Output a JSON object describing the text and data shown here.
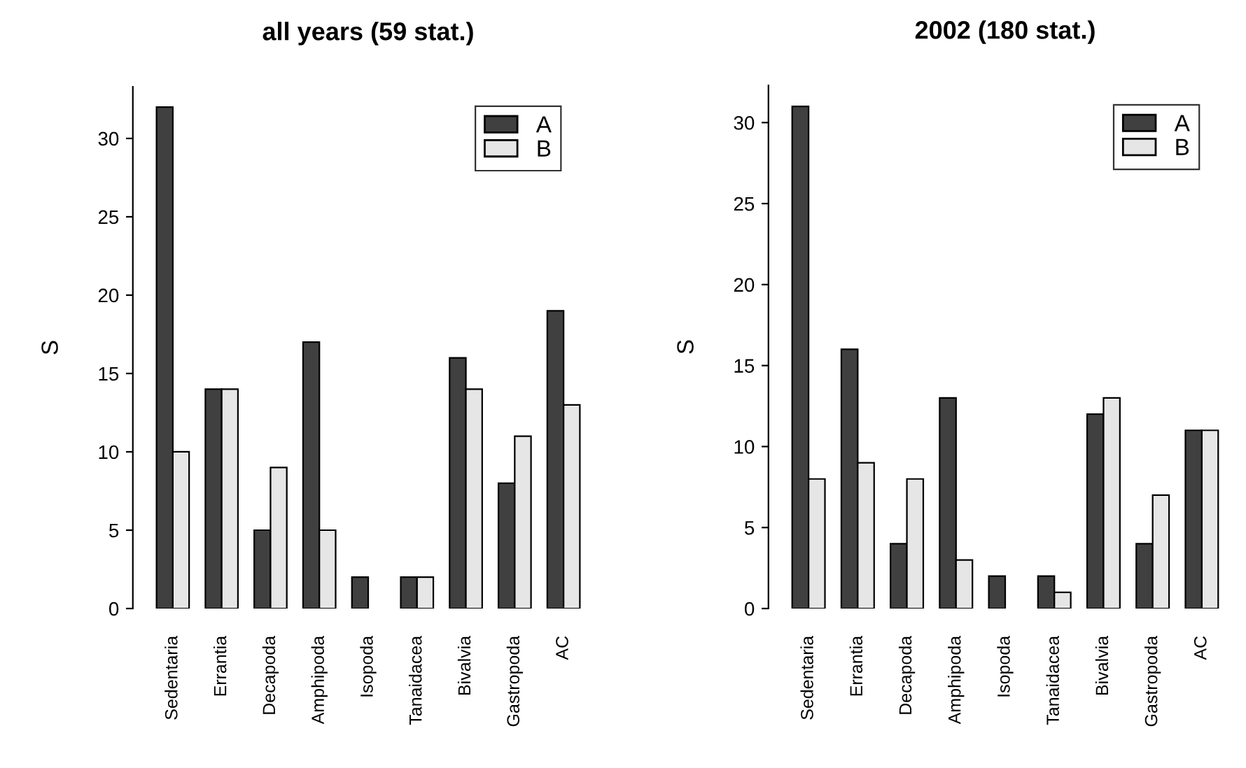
{
  "chart_data": [
    {
      "type": "bar",
      "title": "all years (59 stat.)",
      "ylabel": "S",
      "categories": [
        "Sedentaria",
        "Errantia",
        "Decapoda",
        "Amphipoda",
        "Isopoda",
        "Tanaidacea",
        "Bivalvia",
        "Gastropoda",
        "AC"
      ],
      "series": [
        {
          "name": "A",
          "color": "#404040",
          "values": [
            32,
            14,
            5,
            17,
            2,
            2,
            16,
            8,
            19
          ]
        },
        {
          "name": "B",
          "color": "#e6e6e6",
          "values": [
            10,
            14,
            9,
            5,
            0,
            2,
            14,
            11,
            13
          ]
        }
      ],
      "ylim": [
        0,
        33.3
      ],
      "yticks": [
        0,
        5,
        10,
        15,
        20,
        25,
        30
      ],
      "legend": "top right",
      "grid": false
    },
    {
      "type": "bar",
      "title": "2002 (180 stat.)",
      "ylabel": "S",
      "categories": [
        "Sedentaria",
        "Errantia",
        "Decapoda",
        "Amphipoda",
        "Isopoda",
        "Tanaidacea",
        "Bivalvia",
        "Gastropoda",
        "AC"
      ],
      "series": [
        {
          "name": "A",
          "color": "#404040",
          "values": [
            31,
            16,
            4,
            13,
            2,
            2,
            12,
            4,
            11
          ]
        },
        {
          "name": "B",
          "color": "#e6e6e6",
          "values": [
            8,
            9,
            8,
            3,
            0,
            1,
            13,
            7,
            11
          ]
        }
      ],
      "ylim": [
        0,
        32.3
      ],
      "yticks": [
        0,
        5,
        10,
        15,
        20,
        25,
        30
      ],
      "legend": "top right",
      "grid": false
    }
  ]
}
